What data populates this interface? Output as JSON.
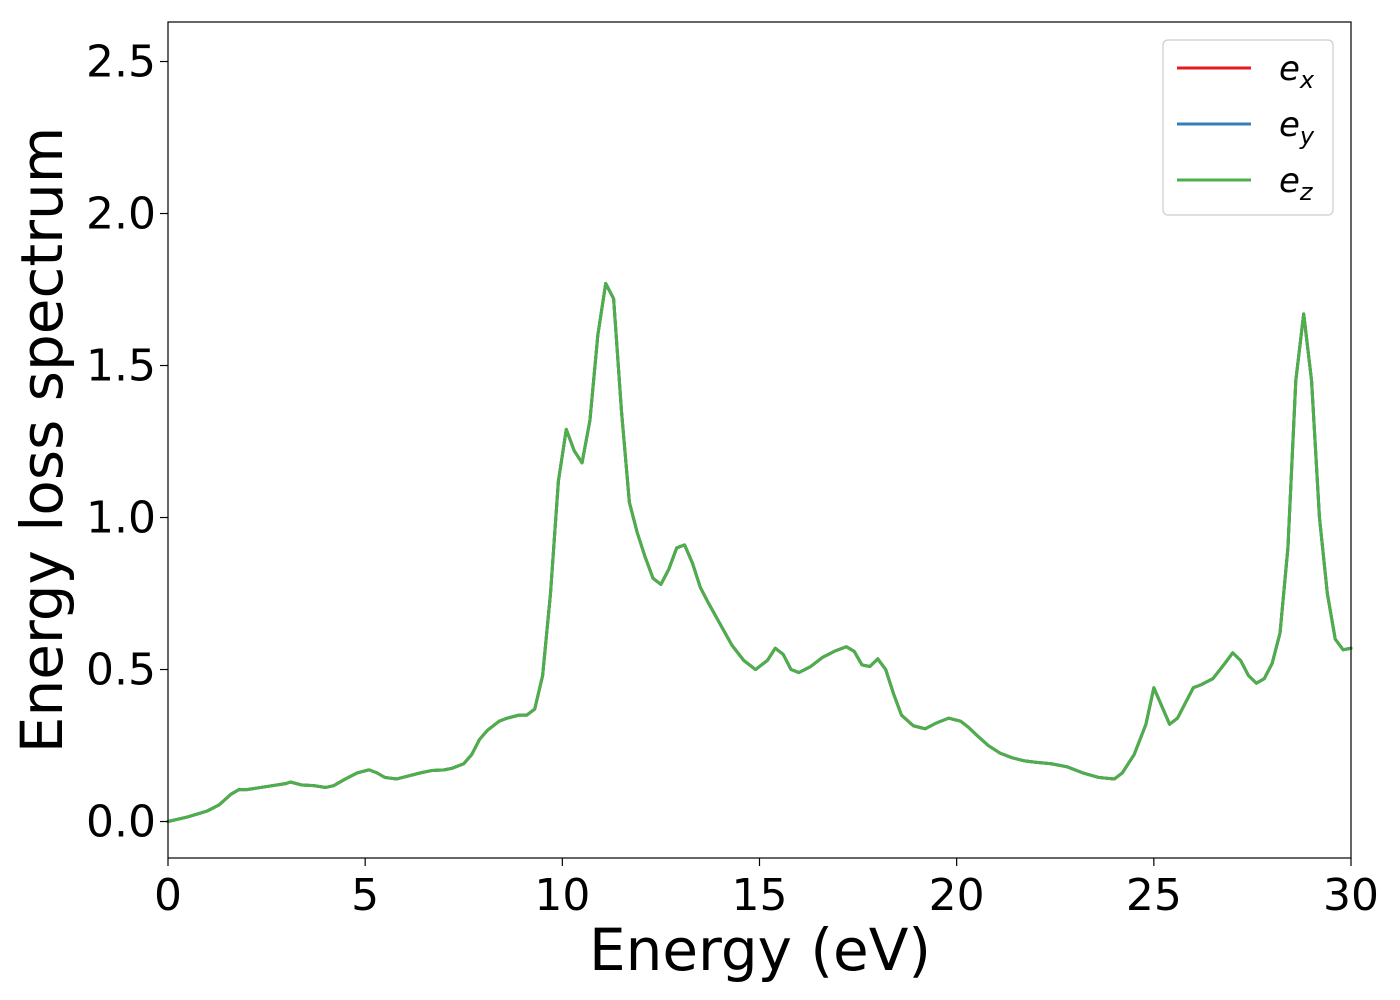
{
  "chart_data": {
    "type": "line",
    "title": "",
    "xlabel": "Energy (eV)",
    "ylabel": "Energy loss spectrum",
    "xlim": [
      0,
      30
    ],
    "ylim": [
      -0.12,
      2.63
    ],
    "xticks": [
      0,
      5,
      10,
      15,
      20,
      25,
      30
    ],
    "xtick_labels": [
      "0",
      "5",
      "10",
      "15",
      "20",
      "25",
      "30"
    ],
    "yticks": [
      0.0,
      0.5,
      1.0,
      1.5,
      2.0,
      2.5
    ],
    "ytick_labels": [
      "0.0",
      "0.5",
      "1.0",
      "1.5",
      "2.0",
      "2.5"
    ],
    "grid": false,
    "legend_position": "top-right",
    "x": [
      0,
      0.5,
      1.0,
      1.3,
      1.6,
      1.8,
      2.0,
      2.5,
      3.0,
      3.1,
      3.4,
      3.7,
      4.0,
      4.2,
      4.5,
      4.8,
      5.1,
      5.3,
      5.5,
      5.8,
      6.1,
      6.4,
      6.7,
      7.0,
      7.2,
      7.5,
      7.7,
      7.9,
      8.1,
      8.4,
      8.6,
      8.9,
      9.1,
      9.3,
      9.5,
      9.7,
      9.9,
      10.1,
      10.3,
      10.5,
      10.7,
      10.9,
      11.1,
      11.3,
      11.5,
      11.7,
      11.9,
      12.1,
      12.3,
      12.5,
      12.7,
      12.9,
      13.1,
      13.3,
      13.5,
      13.7,
      14.0,
      14.3,
      14.6,
      14.9,
      15.2,
      15.4,
      15.6,
      15.8,
      16.0,
      16.3,
      16.6,
      16.9,
      17.2,
      17.4,
      17.6,
      17.8,
      18.0,
      18.2,
      18.4,
      18.6,
      18.9,
      19.2,
      19.5,
      19.8,
      20.1,
      20.3,
      20.5,
      20.8,
      21.1,
      21.4,
      21.7,
      22.0,
      22.4,
      22.8,
      23.2,
      23.6,
      24.0,
      24.2,
      24.5,
      24.8,
      25.0,
      25.2,
      25.4,
      25.6,
      25.8,
      26.0,
      26.2,
      26.5,
      26.8,
      27.0,
      27.2,
      27.4,
      27.6,
      27.8,
      28.0,
      28.2,
      28.4,
      28.6,
      28.8,
      29.0,
      29.2,
      29.4,
      29.6,
      29.8,
      30.0
    ],
    "y_common": [
      0.0,
      0.015,
      0.035,
      0.055,
      0.09,
      0.105,
      0.105,
      0.115,
      0.125,
      0.13,
      0.12,
      0.118,
      0.112,
      0.118,
      0.14,
      0.16,
      0.17,
      0.16,
      0.145,
      0.14,
      0.15,
      0.16,
      0.168,
      0.17,
      0.175,
      0.19,
      0.22,
      0.27,
      0.3,
      0.33,
      0.34,
      0.35,
      0.35,
      0.37,
      0.48,
      0.75,
      1.12,
      1.29,
      1.22,
      1.18,
      1.32,
      1.6,
      1.77,
      1.72,
      1.35,
      1.05,
      0.95,
      0.87,
      0.8,
      0.78,
      0.83,
      0.9,
      0.91,
      0.85,
      0.77,
      0.72,
      0.65,
      0.58,
      0.53,
      0.5,
      0.53,
      0.57,
      0.55,
      0.5,
      0.49,
      0.51,
      0.54,
      0.56,
      0.575,
      0.56,
      0.515,
      0.51,
      0.535,
      0.5,
      0.42,
      0.35,
      0.315,
      0.305,
      0.325,
      0.34,
      0.33,
      0.31,
      0.285,
      0.25,
      0.225,
      0.21,
      0.2,
      0.195,
      0.19,
      0.18,
      0.16,
      0.145,
      0.14,
      0.16,
      0.22,
      0.32,
      0.44,
      0.38,
      0.32,
      0.34,
      0.39,
      0.44,
      0.45,
      0.47,
      0.52,
      0.555,
      0.53,
      0.48,
      0.455,
      0.47,
      0.52,
      0.62,
      0.9,
      1.45,
      1.67,
      1.45,
      1.0,
      0.75,
      0.6,
      0.565,
      0.57
    ],
    "series": [
      {
        "name": "e_x",
        "label_base": "e",
        "label_sub": "x",
        "color": "#e41a1c"
      },
      {
        "name": "e_y",
        "label_base": "e",
        "label_sub": "y",
        "color": "#377eb8"
      },
      {
        "name": "e_z",
        "label_base": "e",
        "label_sub": "z",
        "color": "#4daf4a"
      }
    ]
  }
}
